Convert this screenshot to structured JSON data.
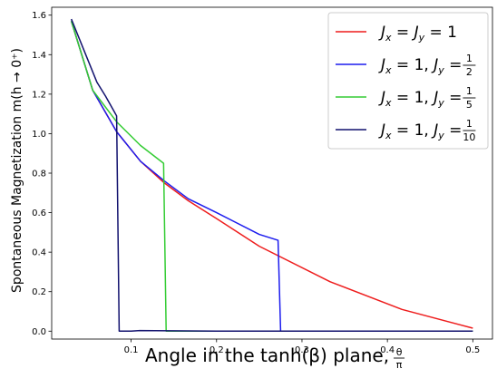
{
  "chart_data": {
    "type": "line",
    "xlabel_text": "Angle in the tanh(β) plane,",
    "xlabel_frac": {
      "num": "θ",
      "den": "π"
    },
    "ylabel": "Spontaneous Magnetization m(h → 0⁺)",
    "xlim": [
      0.007,
      0.523
    ],
    "ylim": [
      -0.04,
      1.64
    ],
    "xticks": [
      0.1,
      0.2,
      0.3,
      0.4,
      0.5
    ],
    "xtick_labels": [
      "0.1",
      "0.2",
      "0.3",
      "0.4",
      "0.5"
    ],
    "yticks": [
      0.0,
      0.2,
      0.4,
      0.6,
      0.8,
      1.0,
      1.2,
      1.4,
      1.6
    ],
    "ytick_labels": [
      "0.0",
      "0.2",
      "0.4",
      "0.6",
      "0.8",
      "1.0",
      "1.2",
      "1.4",
      "1.6"
    ],
    "grid": false,
    "legend_position": "upper-right",
    "series": [
      {
        "name": "Jx = Jy = 1",
        "legend": {
          "a": "J",
          "as": "x",
          "mid": " = ",
          "b": "J",
          "bs": "y",
          "tail": " = 1"
        },
        "color": "#ee1c1c",
        "x": [
          0.03,
          0.055,
          0.083,
          0.111,
          0.139,
          0.167,
          0.2,
          0.25,
          0.333,
          0.417,
          0.5
        ],
        "y": [
          1.57,
          1.22,
          1.01,
          0.86,
          0.75,
          0.66,
          0.57,
          0.43,
          0.25,
          0.11,
          0.015
        ]
      },
      {
        "name": "Jx = 1, Jy = 1/2",
        "legend": {
          "a": "J",
          "as": "x",
          "mid": " = 1, ",
          "b": "J",
          "bs": "y",
          "tail": " = ",
          "num": "1",
          "den": "2"
        },
        "color": "#1c1cee",
        "x": [
          0.03,
          0.055,
          0.083,
          0.111,
          0.139,
          0.167,
          0.2,
          0.25,
          0.272,
          0.275,
          0.35,
          0.5
        ],
        "y": [
          1.57,
          1.22,
          1.01,
          0.86,
          0.76,
          0.67,
          0.6,
          0.49,
          0.46,
          0.0,
          0.0,
          0.0
        ]
      },
      {
        "name": "Jx = 1, Jy = 1/5",
        "legend": {
          "a": "J",
          "as": "x",
          "mid": " = 1, ",
          "b": "J",
          "bs": "y",
          "tail": " = ",
          "num": "1",
          "den": "5"
        },
        "color": "#33cc33",
        "x": [
          0.03,
          0.055,
          0.083,
          0.111,
          0.138,
          0.141,
          0.2,
          0.3,
          0.4,
          0.5
        ],
        "y": [
          1.57,
          1.22,
          1.06,
          0.94,
          0.85,
          0.0,
          0.0,
          0.0,
          0.0,
          0.0
        ]
      },
      {
        "name": "Jx = 1, Jy = 1/10",
        "legend": {
          "a": "J",
          "as": "x",
          "mid": " = 1, ",
          "b": "J",
          "bs": "y",
          "tail": " = ",
          "num": "1",
          "den": "10"
        },
        "color": "#11116e",
        "x": [
          0.03,
          0.06,
          0.07,
          0.083,
          0.086,
          0.1,
          0.11,
          0.2,
          0.3,
          0.4,
          0.5
        ],
        "y": [
          1.58,
          1.26,
          1.19,
          1.09,
          0.0,
          0.0,
          0.003,
          0.0,
          0.0,
          0.0,
          0.0
        ]
      }
    ]
  }
}
